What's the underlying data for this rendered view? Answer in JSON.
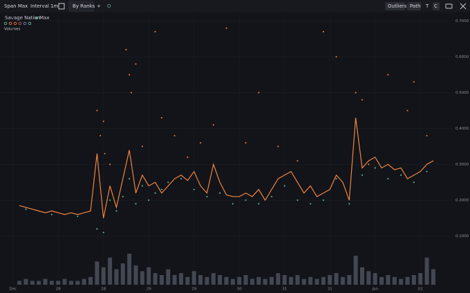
{
  "toolbar": {
    "left": [
      "Span Max",
      "Interval 1m",
      "By Ranks",
      "+",
      "O"
    ],
    "right": [
      "Outliers",
      "Path",
      "T",
      "C"
    ]
  },
  "chart_data": {
    "type": "line",
    "legend_title": "Savage Nation",
    "series": [
      {
        "name": "Max",
        "color": "#f5853f",
        "x": [
          3,
          4,
          5,
          6,
          7,
          8,
          9,
          10,
          11,
          12,
          13,
          14,
          15,
          16,
          17,
          18,
          19,
          20,
          21,
          22,
          23,
          24,
          25,
          26,
          27,
          28,
          29,
          30,
          31,
          32,
          33,
          34,
          35,
          36,
          37,
          38,
          39,
          40,
          41,
          42,
          43,
          44,
          45,
          46,
          47,
          48,
          49,
          50,
          51,
          52,
          53,
          54,
          55,
          56,
          57,
          58,
          59,
          60,
          61,
          62,
          63,
          64,
          65,
          66,
          67
        ],
        "values": [
          0.185,
          0.18,
          0.175,
          0.17,
          0.165,
          0.17,
          0.165,
          0.16,
          0.165,
          0.16,
          0.165,
          0.17,
          0.33,
          0.15,
          0.24,
          0.18,
          0.26,
          0.34,
          0.22,
          0.27,
          0.24,
          0.25,
          0.22,
          0.24,
          0.26,
          0.27,
          0.255,
          0.28,
          0.24,
          0.22,
          0.3,
          0.25,
          0.215,
          0.21,
          0.21,
          0.22,
          0.21,
          0.23,
          0.2,
          0.23,
          0.26,
          0.27,
          0.28,
          0.25,
          0.22,
          0.24,
          0.21,
          0.22,
          0.23,
          0.27,
          0.25,
          0.2,
          0.43,
          0.29,
          0.31,
          0.32,
          0.29,
          0.3,
          0.285,
          0.29,
          0.26,
          0.27,
          0.28,
          0.3,
          0.31
        ]
      }
    ],
    "scatter": [
      {
        "color": "#e0703a",
        "x": [
          15,
          15.5,
          16,
          16.2,
          17,
          19.5,
          20,
          20.3,
          21,
          22,
          24,
          25,
          27,
          29,
          31,
          33,
          35,
          38,
          40,
          43,
          46,
          50,
          52,
          55,
          56,
          57,
          60,
          63,
          64,
          66
        ],
        "y": [
          0.45,
          0.38,
          0.42,
          0.33,
          0.3,
          0.62,
          0.55,
          0.5,
          0.58,
          0.35,
          0.67,
          0.43,
          0.38,
          0.32,
          0.36,
          0.41,
          0.68,
          0.36,
          0.5,
          0.35,
          0.31,
          0.67,
          0.6,
          0.5,
          0.48,
          0.3,
          0.55,
          0.45,
          0.53,
          0.38
        ]
      },
      {
        "color": "#5fa88a",
        "x": [
          4,
          8,
          12,
          15,
          16,
          17,
          18,
          19,
          20,
          21,
          22,
          23,
          24,
          25,
          26,
          28,
          30,
          32,
          34,
          36,
          38,
          40,
          42,
          44,
          46,
          48,
          50,
          52,
          54,
          56,
          58,
          60,
          62,
          64,
          66
        ],
        "y": [
          0.175,
          0.16,
          0.155,
          0.12,
          0.11,
          0.2,
          0.17,
          0.21,
          0.26,
          0.19,
          0.24,
          0.2,
          0.22,
          0.23,
          0.25,
          0.26,
          0.23,
          0.21,
          0.22,
          0.19,
          0.2,
          0.19,
          0.21,
          0.24,
          0.2,
          0.19,
          0.2,
          0.26,
          0.19,
          0.27,
          0.29,
          0.26,
          0.27,
          0.25,
          0.28
        ]
      }
    ],
    "volume": {
      "label": "Volumes",
      "color": "#6b7180",
      "values": [
        2,
        3,
        2,
        2,
        3,
        2,
        2,
        3,
        2,
        2,
        3,
        4,
        12,
        9,
        14,
        8,
        11,
        16,
        10,
        7,
        9,
        6,
        5,
        8,
        5,
        6,
        4,
        7,
        5,
        4,
        6,
        5,
        4,
        3,
        4,
        5,
        3,
        4,
        3,
        4,
        6,
        5,
        4,
        5,
        3,
        4,
        3,
        4,
        5,
        6,
        4,
        5,
        15,
        9,
        7,
        6,
        4,
        5,
        4,
        3,
        4,
        5,
        6,
        14,
        8
      ]
    },
    "xlim": [
      0,
      70
    ],
    "xticks": [
      {
        "value": 2,
        "label": "Dec"
      },
      {
        "value": 9,
        "label": "28"
      },
      {
        "value": 16,
        "label": "28"
      },
      {
        "value": 23,
        "label": "29"
      },
      {
        "value": 30,
        "label": "29"
      },
      {
        "value": 37,
        "label": "30"
      },
      {
        "value": 44,
        "label": "31"
      },
      {
        "value": 51,
        "label": "31"
      },
      {
        "value": 58,
        "label": "Jan"
      },
      {
        "value": 65,
        "label": "01"
      }
    ],
    "ylim": [
      -0.03,
      0.72
    ],
    "yticks": [
      {
        "value": 0.1,
        "label": "0.1000"
      },
      {
        "value": 0.2,
        "label": "0.2000"
      },
      {
        "value": 0.3,
        "label": "0.3000"
      },
      {
        "value": 0.4,
        "label": "0.4000"
      },
      {
        "value": 0.5,
        "label": "0.5000"
      },
      {
        "value": 0.6,
        "label": "0.6000"
      },
      {
        "value": 0.7,
        "label": "0.7000"
      }
    ],
    "grid": true
  }
}
